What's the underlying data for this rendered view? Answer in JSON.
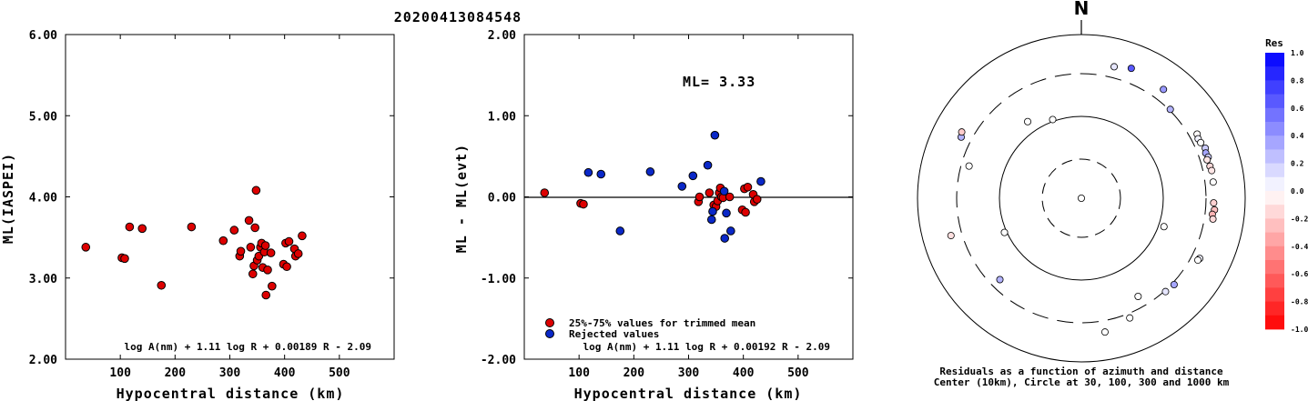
{
  "title": "20200413084548",
  "chart_data": [
    {
      "type": "scatter",
      "id": "left",
      "xlabel": "Hypocentral distance (km)",
      "ylabel": "ML(IASPEI)",
      "xlim": [
        0,
        600
      ],
      "ylim": [
        2.0,
        6.0
      ],
      "xticks": [
        "100",
        "200",
        "300",
        "400",
        "500"
      ],
      "yticks": [
        "2.00",
        "3.00",
        "4.00",
        "5.00",
        "6.00"
      ],
      "formula": "log A(nm) + 1.11 log R + 0.00189 R - 2.09",
      "series": [
        {
          "color": "#dd0000",
          "points": [
            [
              37,
              3.38
            ],
            [
              103,
              3.25
            ],
            [
              108,
              3.24
            ],
            [
              117,
              3.63
            ],
            [
              140,
              3.61
            ],
            [
              175,
              2.91
            ],
            [
              230,
              3.63
            ],
            [
              288,
              3.46
            ],
            [
              308,
              3.59
            ],
            [
              318,
              3.27
            ],
            [
              320,
              3.33
            ],
            [
              335,
              3.71
            ],
            [
              338,
              3.38
            ],
            [
              342,
              3.05
            ],
            [
              344,
              3.15
            ],
            [
              346,
              3.62
            ],
            [
              348,
              4.08
            ],
            [
              350,
              3.22
            ],
            [
              353,
              3.27
            ],
            [
              356,
              3.38
            ],
            [
              358,
              3.43
            ],
            [
              360,
              3.13
            ],
            [
              363,
              3.32
            ],
            [
              365,
              3.4
            ],
            [
              366,
              2.79
            ],
            [
              369,
              3.1
            ],
            [
              375,
              3.31
            ],
            [
              377,
              2.9
            ],
            [
              398,
              3.17
            ],
            [
              402,
              3.43
            ],
            [
              404,
              3.14
            ],
            [
              408,
              3.45
            ],
            [
              418,
              3.36
            ],
            [
              420,
              3.27
            ],
            [
              425,
              3.3
            ],
            [
              432,
              3.52
            ]
          ]
        }
      ]
    },
    {
      "type": "scatter",
      "id": "middle",
      "xlabel": "Hypocentral distance (km)",
      "ylabel": "ML - ML(evt)",
      "xlim": [
        0,
        600
      ],
      "ylim": [
        -2.0,
        2.0
      ],
      "xticks": [
        "100",
        "200",
        "300",
        "400",
        "500"
      ],
      "yticks": [
        "-2.00",
        "-1.00",
        "0.00",
        "1.00",
        "2.00"
      ],
      "annotation": "ML= 3.33",
      "formula": "log A(nm) + 1.11 log R + 0.00192 R - 2.09",
      "legend": [
        "25%-75% values for trimmed mean",
        "Rejected values"
      ],
      "series": [
        {
          "name": "25%-75% values for trimmed mean",
          "color": "#dd0000",
          "points": [
            [
              37,
              0.05
            ],
            [
              103,
              -0.08
            ],
            [
              108,
              -0.09
            ],
            [
              318,
              -0.06
            ],
            [
              320,
              0.0
            ],
            [
              338,
              0.05
            ],
            [
              346,
              -0.1
            ],
            [
              350,
              -0.12
            ],
            [
              353,
              -0.05
            ],
            [
              356,
              0.05
            ],
            [
              358,
              0.11
            ],
            [
              360,
              0.0
            ],
            [
              363,
              -0.01
            ],
            [
              375,
              0.0
            ],
            [
              398,
              -0.16
            ],
            [
              402,
              0.1
            ],
            [
              404,
              -0.19
            ],
            [
              408,
              0.12
            ],
            [
              418,
              0.03
            ],
            [
              420,
              -0.06
            ],
            [
              425,
              -0.03
            ]
          ]
        },
        {
          "name": "Rejected values",
          "color": "#0a28c8",
          "points": [
            [
              117,
              0.3
            ],
            [
              140,
              0.28
            ],
            [
              175,
              -0.42
            ],
            [
              230,
              0.31
            ],
            [
              288,
              0.13
            ],
            [
              308,
              0.26
            ],
            [
              335,
              0.39
            ],
            [
              342,
              -0.28
            ],
            [
              344,
              -0.18
            ],
            [
              348,
              0.76
            ],
            [
              365,
              0.07
            ],
            [
              366,
              -0.51
            ],
            [
              369,
              -0.2
            ],
            [
              377,
              -0.42
            ],
            [
              432,
              0.19
            ]
          ]
        }
      ]
    },
    {
      "type": "scatter",
      "id": "polar",
      "north_label": "N",
      "caption_line1": "Residuals as a function of azimuth and distance",
      "caption_line2": "Center (10km), Circle at 30, 100, 300 and 1000 km",
      "colorbar_title": "Res",
      "colorbar_ticks": [
        "1.0",
        "0.8",
        "0.6",
        "0.4",
        "0.2",
        "0.0",
        "-0.2",
        "-0.4",
        "-0.6",
        "-0.8",
        "-1.0"
      ],
      "note": "points: azimuth (deg), distance (km), residual",
      "points": [
        [
          14,
          420,
          0.1
        ],
        [
          21,
          470,
          0.65
        ],
        [
          37,
          430,
          0.4
        ],
        [
          45,
          310,
          0.3
        ],
        [
          61,
          380,
          -0.02
        ],
        [
          63,
          365,
          0.05
        ],
        [
          65,
          372,
          0.0
        ],
        [
          68,
          395,
          0.2
        ],
        [
          70,
          380,
          0.35
        ],
        [
          72,
          392,
          0.2
        ],
        [
          73,
          370,
          -0.1
        ],
        [
          76,
          382,
          -0.15
        ],
        [
          78,
          390,
          -0.1
        ],
        [
          83,
          385,
          0.0
        ],
        [
          92,
          380,
          -0.18
        ],
        [
          95,
          395,
          -0.25
        ],
        [
          97,
          375,
          -0.3
        ],
        [
          99,
          390,
          -0.15
        ],
        [
          117,
          385,
          0.05
        ],
        [
          118,
          375,
          0.0
        ],
        [
          133,
          320,
          0.35
        ],
        [
          138,
          310,
          0.1
        ],
        [
          150,
          225,
          0.0
        ],
        [
          158,
          345,
          0.0
        ],
        [
          170,
          425,
          0.0
        ],
        [
          225,
          235,
          0.3
        ],
        [
          254,
          420,
          -0.12
        ],
        [
          286,
          245,
          0.0
        ],
        [
          297,
          410,
          0.3
        ],
        [
          299,
          435,
          -0.2
        ],
        [
          325,
          135,
          0.0
        ],
        [
          340,
          105,
          0.0
        ],
        [
          332,
          1,
          0.0
        ],
        [
          246,
          106,
          0.0
        ],
        [
          109,
          115,
          0.0
        ]
      ]
    }
  ]
}
